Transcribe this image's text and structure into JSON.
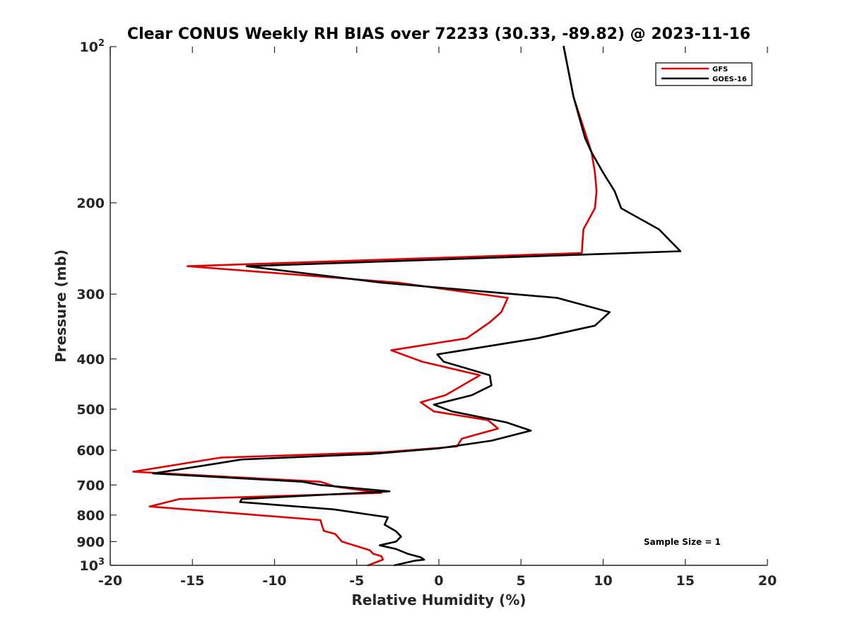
{
  "chart_data": {
    "type": "line",
    "title": "Clear CONUS Weekly RH BIAS over 72233 (30.33, -89.82) @ 2023-11-16",
    "xlabel": "Relative Humidity (%)",
    "ylabel": "Pressure (mb)",
    "xlim": [
      -20,
      20
    ],
    "ylim": [
      100,
      1000
    ],
    "y_scale": "log",
    "y_reversed": true,
    "x_ticks": [
      {
        "value": -20,
        "label": "-20"
      },
      {
        "value": -15,
        "label": "-15"
      },
      {
        "value": -10,
        "label": "-10"
      },
      {
        "value": -5,
        "label": "-5"
      },
      {
        "value": 0,
        "label": "0"
      },
      {
        "value": 5,
        "label": "5"
      },
      {
        "value": 10,
        "label": "10"
      },
      {
        "value": 15,
        "label": "15"
      },
      {
        "value": 20,
        "label": "20"
      }
    ],
    "y_ticks": [
      {
        "value": 100,
        "base": "10",
        "exp": "2"
      },
      {
        "value": 200,
        "label": "200"
      },
      {
        "value": 300,
        "label": "300"
      },
      {
        "value": 400,
        "label": "400"
      },
      {
        "value": 500,
        "label": "500"
      },
      {
        "value": 600,
        "label": "600"
      },
      {
        "value": 700,
        "label": "700"
      },
      {
        "value": 800,
        "label": "800"
      },
      {
        "value": 900,
        "label": "900"
      },
      {
        "value": 1000,
        "base": "10",
        "exp": "3"
      }
    ],
    "grid": false,
    "legend_position": "top-right",
    "annotation": "Sample Size = 1",
    "series": [
      {
        "name": "GFS",
        "color": "#e00000",
        "points": [
          [
            7.6,
            100
          ],
          [
            8.2,
            125
          ],
          [
            9.3,
            160
          ],
          [
            9.5,
            175
          ],
          [
            9.6,
            190
          ],
          [
            9.5,
            205
          ],
          [
            8.8,
            225
          ],
          [
            8.7,
            250
          ],
          [
            -15.3,
            265
          ],
          [
            -2.5,
            285
          ],
          [
            4.2,
            305
          ],
          [
            3.8,
            325
          ],
          [
            3.1,
            340
          ],
          [
            1.7,
            365
          ],
          [
            -2.9,
            385
          ],
          [
            -1.0,
            405
          ],
          [
            2.5,
            430
          ],
          [
            0.4,
            470
          ],
          [
            -1.1,
            485
          ],
          [
            -0.3,
            505
          ],
          [
            3.0,
            525
          ],
          [
            3.6,
            545
          ],
          [
            1.4,
            570
          ],
          [
            1.1,
            590
          ],
          [
            -3.3,
            605
          ],
          [
            -13.3,
            620
          ],
          [
            -18.6,
            660
          ],
          [
            -7.2,
            690
          ],
          [
            -6.3,
            705
          ],
          [
            -3.5,
            725
          ],
          [
            -15.8,
            745
          ],
          [
            -17.6,
            770
          ],
          [
            -7.2,
            818
          ],
          [
            -7.1,
            840
          ],
          [
            -7.0,
            858
          ],
          [
            -6.3,
            870
          ],
          [
            -5.9,
            900
          ],
          [
            -4.2,
            935
          ],
          [
            -4.0,
            950
          ],
          [
            -3.5,
            960
          ],
          [
            -3.4,
            975
          ],
          [
            -4.3,
            1000
          ]
        ]
      },
      {
        "name": "GOES-16",
        "color": "#000000",
        "points": [
          [
            7.6,
            100
          ],
          [
            8.2,
            125
          ],
          [
            8.9,
            150
          ],
          [
            9.3,
            160
          ],
          [
            10.0,
            175
          ],
          [
            10.7,
            190
          ],
          [
            11.1,
            205
          ],
          [
            13.4,
            225
          ],
          [
            14.7,
            248
          ],
          [
            -11.7,
            265
          ],
          [
            -3.5,
            285
          ],
          [
            7.2,
            305
          ],
          [
            10.4,
            325
          ],
          [
            9.5,
            345
          ],
          [
            6.0,
            365
          ],
          [
            -0.1,
            392
          ],
          [
            0.3,
            405
          ],
          [
            3.1,
            430
          ],
          [
            3.2,
            450
          ],
          [
            2.0,
            470
          ],
          [
            -0.3,
            490
          ],
          [
            0.8,
            505
          ],
          [
            4.1,
            530
          ],
          [
            5.6,
            550
          ],
          [
            3.2,
            575
          ],
          [
            0.0,
            595
          ],
          [
            -4.1,
            610
          ],
          [
            -12.0,
            625
          ],
          [
            -14.0,
            640
          ],
          [
            -17.4,
            665
          ],
          [
            -8.3,
            690
          ],
          [
            -7.2,
            700
          ],
          [
            -3.0,
            720
          ],
          [
            -12.0,
            745
          ],
          [
            -12.1,
            755
          ],
          [
            -6.4,
            780
          ],
          [
            -3.1,
            808
          ],
          [
            -3.3,
            835
          ],
          [
            -2.6,
            860
          ],
          [
            -2.3,
            880
          ],
          [
            -2.6,
            900
          ],
          [
            -3.6,
            915
          ],
          [
            -2.6,
            930
          ],
          [
            -1.9,
            950
          ],
          [
            -1.1,
            965
          ],
          [
            -0.9,
            975
          ],
          [
            -1.5,
            980
          ],
          [
            -2.7,
            1000
          ]
        ]
      }
    ]
  }
}
